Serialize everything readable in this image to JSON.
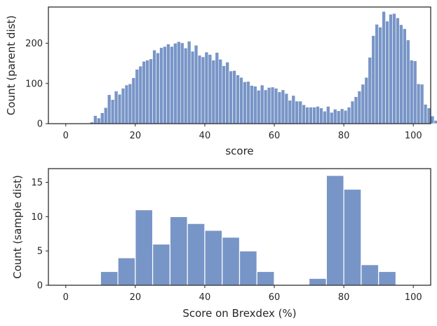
{
  "chart_data": [
    {
      "type": "histogram",
      "xlabel": "score",
      "ylabel": "Count (parent dist)",
      "xlim": [
        -5,
        105
      ],
      "ylim": [
        0,
        290
      ],
      "xticks": [
        0,
        20,
        40,
        60,
        80,
        100
      ],
      "yticks": [
        0,
        100,
        200
      ],
      "color": "#7895c7",
      "bin_width": 1,
      "bin_start": 7,
      "values": [
        4,
        20,
        14,
        27,
        40,
        72,
        60,
        81,
        73,
        88,
        96,
        99,
        114,
        135,
        143,
        155,
        158,
        161,
        183,
        176,
        189,
        192,
        198,
        192,
        200,
        204,
        201,
        188,
        205,
        180,
        195,
        170,
        166,
        178,
        172,
        158,
        177,
        160,
        144,
        153,
        131,
        132,
        121,
        115,
        104,
        105,
        95,
        93,
        83,
        96,
        84,
        90,
        91,
        88,
        79,
        84,
        75,
        58,
        70,
        56,
        56,
        47,
        41,
        41,
        41,
        43,
        39,
        31,
        43,
        28,
        36,
        32,
        37,
        33,
        41,
        56,
        67,
        81,
        98,
        115,
        165,
        219,
        247,
        240,
        279,
        255,
        272,
        274,
        263,
        246,
        236,
        208,
        158,
        156,
        99,
        98,
        48,
        39,
        19,
        8,
        2,
        1
      ]
    },
    {
      "type": "histogram",
      "xlabel": "Score on Brexdex (%)",
      "ylabel": "Count (sample dist)",
      "xlim": [
        -5,
        105
      ],
      "ylim": [
        0,
        17
      ],
      "xticks": [
        0,
        20,
        40,
        60,
        80,
        100
      ],
      "yticks": [
        0,
        5,
        10,
        15
      ],
      "color": "#7895c7",
      "bins": [
        {
          "x0": 10,
          "x1": 15,
          "count": 2
        },
        {
          "x0": 15,
          "x1": 20,
          "count": 4
        },
        {
          "x0": 20,
          "x1": 25,
          "count": 11
        },
        {
          "x0": 25,
          "x1": 30,
          "count": 6
        },
        {
          "x0": 30,
          "x1": 35,
          "count": 10
        },
        {
          "x0": 35,
          "x1": 40,
          "count": 9
        },
        {
          "x0": 40,
          "x1": 45,
          "count": 8
        },
        {
          "x0": 45,
          "x1": 50,
          "count": 7
        },
        {
          "x0": 50,
          "x1": 55,
          "count": 5
        },
        {
          "x0": 55,
          "x1": 60,
          "count": 2
        },
        {
          "x0": 70,
          "x1": 75,
          "count": 1
        },
        {
          "x0": 75,
          "x1": 80,
          "count": 16
        },
        {
          "x0": 80,
          "x1": 85,
          "count": 14
        },
        {
          "x0": 85,
          "x1": 90,
          "count": 3
        },
        {
          "x0": 90,
          "x1": 95,
          "count": 2
        }
      ]
    }
  ]
}
